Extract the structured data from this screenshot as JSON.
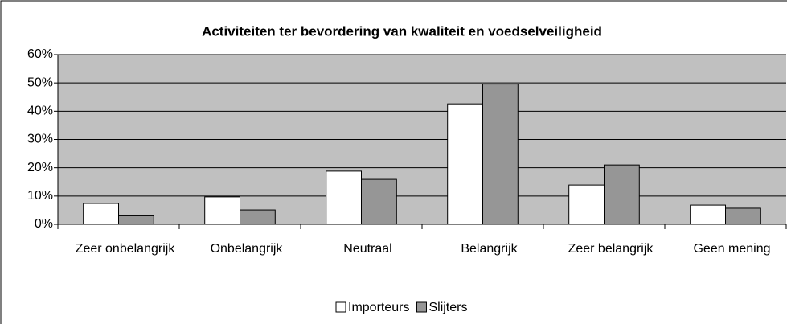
{
  "chart_data": {
    "type": "bar",
    "title": "Activiteiten ter bevordering van kwaliteit en voedselveiligheid",
    "categories": [
      "Zeer onbelangrijk",
      "Onbelangrijk",
      "Neutraal",
      "Belangrijk",
      "Zeer belangrijk",
      "Geen mening"
    ],
    "series": [
      {
        "name": "Importeurs",
        "color": "#ffffff",
        "values": [
          7.4,
          9.7,
          18.8,
          42.6,
          13.9,
          6.8
        ]
      },
      {
        "name": "Slijters",
        "color": "#969696",
        "values": [
          3.0,
          5.1,
          15.9,
          49.6,
          21.0,
          5.7
        ]
      }
    ],
    "ylim": [
      0,
      60
    ],
    "yticks": [
      {
        "value": 0,
        "label": "0%"
      },
      {
        "value": 10,
        "label": "10%"
      },
      {
        "value": 20,
        "label": "20%"
      },
      {
        "value": 30,
        "label": "30%"
      },
      {
        "value": 40,
        "label": "40%"
      },
      {
        "value": 50,
        "label": "50%"
      },
      {
        "value": 60,
        "label": "60%"
      }
    ],
    "grid": true,
    "legend": "bottom"
  }
}
